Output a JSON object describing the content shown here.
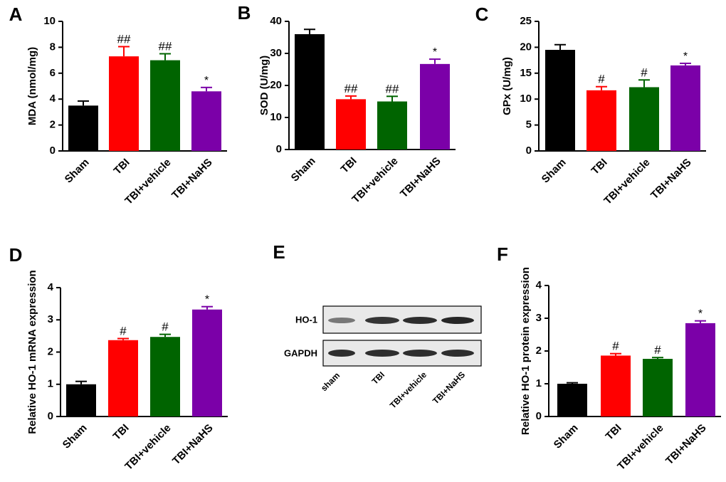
{
  "colors": {
    "sham": "#000000",
    "tbi": "#ff0000",
    "tbi_vehicle": "#006400",
    "tbi_nahs": "#7b00a8"
  },
  "chart_data": [
    {
      "panel": "A",
      "type": "bar",
      "categories": [
        "Sham",
        "TBI",
        "TBI+vehicle",
        "TBI+NaHS"
      ],
      "values": [
        3.5,
        7.3,
        7.0,
        4.6
      ],
      "errors": [
        0.35,
        0.75,
        0.5,
        0.3
      ],
      "annotations": [
        "",
        "##",
        "##",
        "*"
      ],
      "ylabel": "MDA (nmol/mg)",
      "ylim": [
        0,
        10
      ],
      "yticks": [
        0,
        2,
        4,
        6,
        8,
        10
      ]
    },
    {
      "panel": "B",
      "type": "bar",
      "categories": [
        "Sham",
        "TBI",
        "TBI+vehicle",
        "TBI+NaHS"
      ],
      "values": [
        36,
        15.7,
        15,
        26.7
      ],
      "errors": [
        1.5,
        1.0,
        1.6,
        1.5
      ],
      "annotations": [
        "",
        "##",
        "##",
        "*"
      ],
      "ylabel": "SOD (U/mg)",
      "ylim": [
        0,
        40
      ],
      "yticks": [
        0,
        10,
        20,
        30,
        40
      ]
    },
    {
      "panel": "C",
      "type": "bar",
      "categories": [
        "Sham",
        "TBI",
        "TBI+vehicle",
        "TBI+NaHS"
      ],
      "values": [
        19.5,
        11.7,
        12.3,
        16.5
      ],
      "errors": [
        1.0,
        0.7,
        1.4,
        0.4
      ],
      "annotations": [
        "",
        "#",
        "#",
        "*"
      ],
      "ylabel": "GPx (U/mg)",
      "ylim": [
        0,
        25
      ],
      "yticks": [
        0,
        5,
        10,
        15,
        20,
        25
      ]
    },
    {
      "panel": "D",
      "type": "bar",
      "categories": [
        "Sham",
        "TBI",
        "TBI+vehicle",
        "TBI+NaHS"
      ],
      "values": [
        1.0,
        2.37,
        2.47,
        3.32
      ],
      "errors": [
        0.09,
        0.05,
        0.08,
        0.09
      ],
      "annotations": [
        "",
        "#",
        "#",
        "*"
      ],
      "ylabel": "Relative HO-1 mRNA expression",
      "ylim": [
        0,
        4
      ],
      "yticks": [
        0,
        1,
        2,
        3,
        4
      ]
    },
    {
      "panel": "F",
      "type": "bar",
      "categories": [
        "Sham",
        "TBI",
        "TBI+vehicle",
        "TBI+NaHS"
      ],
      "values": [
        1.0,
        1.86,
        1.76,
        2.85
      ],
      "errors": [
        0.03,
        0.06,
        0.04,
        0.07
      ],
      "annotations": [
        "",
        "#",
        "#",
        "*"
      ],
      "ylabel": "Relative HO-1 protein expression",
      "ylim": [
        0,
        4
      ],
      "yticks": [
        0,
        1,
        2,
        3,
        4
      ]
    }
  ],
  "blot": {
    "panel": "E",
    "rows": [
      "HO-1",
      "GAPDH"
    ],
    "lanes": [
      "sham",
      "TBI",
      "TBI+vehicle",
      "TBI+NaHS"
    ]
  }
}
